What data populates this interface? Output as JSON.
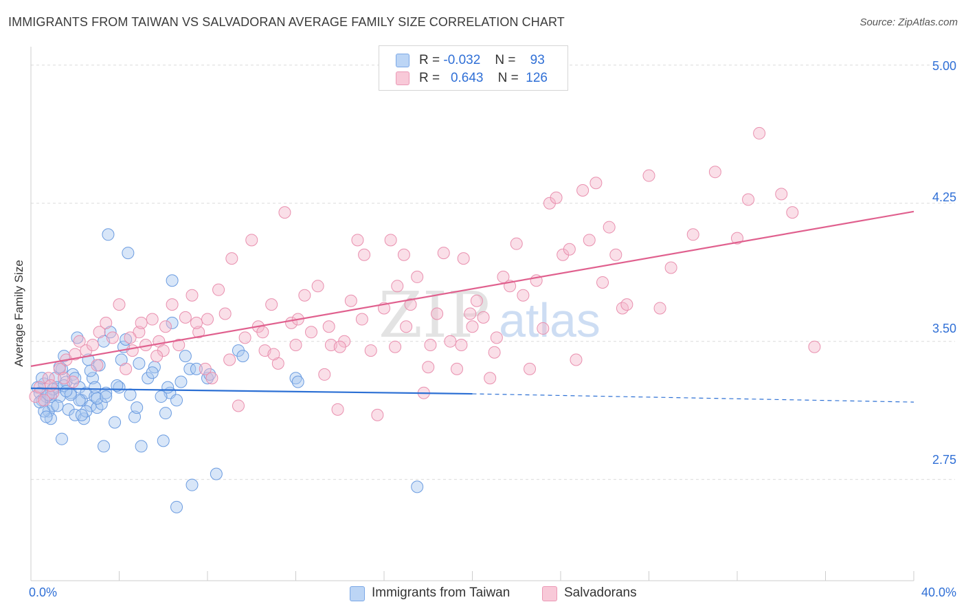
{
  "title": "IMMIGRANTS FROM TAIWAN VS SALVADORAN AVERAGE FAMILY SIZE CORRELATION CHART",
  "source": "Source: ZipAtlas.com",
  "watermark": {
    "zip": "ZIP",
    "atlas": "atlas"
  },
  "colors": {
    "blue": "#2f6fd6",
    "blue_fill": "#a8c8f0",
    "pink": "#e0608e",
    "pink_fill": "#f5b8cc",
    "axis_text": "#2f6fd6"
  },
  "legend": {
    "rows": [
      {
        "r_label": "R =",
        "r_value": "-0.032",
        "n_label": "N =",
        "n_value": "93"
      },
      {
        "r_label": "R =",
        "r_value": "0.643",
        "n_label": "N =",
        "n_value": "126"
      }
    ]
  },
  "bottom_legend": [
    {
      "label": "Immigrants from Taiwan"
    },
    {
      "label": "Salvadorans"
    }
  ],
  "chart_data": {
    "type": "scatter",
    "title": "IMMIGRANTS FROM TAIWAN VS SALVADORAN AVERAGE FAMILY SIZE CORRELATION CHART",
    "xlabel": "",
    "ylabel": "Average Family Size",
    "xlim": [
      0,
      40
    ],
    "ylim": [
      2.2,
      5.1
    ],
    "x_tick_labels": [
      "0.0%",
      "40.0%"
    ],
    "y_ticks": [
      2.75,
      3.5,
      4.25,
      5.0
    ],
    "y_tick_labels": [
      "2.75",
      "3.50",
      "4.25",
      "5.00"
    ],
    "grid": "horizontal dashed",
    "series": [
      {
        "name": "Immigrants from Taiwan",
        "color": "#2f6fd6",
        "trend": {
          "x": [
            0,
            20
          ],
          "y": [
            3.245,
            3.215
          ],
          "dashed_to": [
            40,
            3.17
          ]
        },
        "points": [
          [
            0.3,
            3.25
          ],
          [
            0.4,
            3.22
          ],
          [
            0.5,
            3.18
          ],
          [
            0.6,
            3.27
          ],
          [
            0.7,
            3.2
          ],
          [
            0.8,
            3.12
          ],
          [
            0.9,
            3.08
          ],
          [
            1.0,
            3.15
          ],
          [
            1.1,
            3.3
          ],
          [
            1.2,
            3.25
          ],
          [
            1.3,
            3.2
          ],
          [
            1.4,
            3.35
          ],
          [
            1.5,
            3.42
          ],
          [
            1.6,
            3.28
          ],
          [
            1.7,
            3.13
          ],
          [
            1.8,
            3.22
          ],
          [
            1.9,
            3.32
          ],
          [
            2.0,
            3.1
          ],
          [
            2.1,
            3.52
          ],
          [
            2.2,
            3.25
          ],
          [
            2.3,
            3.18
          ],
          [
            2.4,
            3.08
          ],
          [
            2.5,
            3.22
          ],
          [
            2.6,
            3.4
          ],
          [
            2.7,
            3.15
          ],
          [
            2.8,
            3.3
          ],
          [
            2.9,
            3.2
          ],
          [
            3.0,
            3.14
          ],
          [
            3.1,
            3.37
          ],
          [
            3.2,
            3.16
          ],
          [
            3.3,
            3.5
          ],
          [
            3.4,
            3.22
          ],
          [
            3.6,
            3.55
          ],
          [
            3.8,
            3.06
          ],
          [
            4.0,
            3.25
          ],
          [
            4.2,
            3.47
          ],
          [
            4.3,
            3.51
          ],
          [
            4.5,
            3.21
          ],
          [
            4.7,
            3.09
          ],
          [
            4.9,
            3.38
          ],
          [
            5.0,
            2.93
          ],
          [
            5.3,
            3.3
          ],
          [
            5.6,
            3.36
          ],
          [
            6.0,
            2.96
          ],
          [
            6.1,
            3.11
          ],
          [
            6.3,
            3.22
          ],
          [
            6.4,
            3.6
          ],
          [
            6.6,
            3.18
          ],
          [
            7.0,
            3.42
          ],
          [
            7.2,
            3.35
          ],
          [
            7.3,
            2.72
          ],
          [
            8.0,
            3.3
          ],
          [
            8.4,
            2.78
          ],
          [
            9.4,
            3.45
          ],
          [
            9.6,
            3.42
          ],
          [
            12.0,
            3.3
          ],
          [
            3.5,
            4.08
          ],
          [
            4.4,
            3.98
          ],
          [
            6.4,
            3.83
          ],
          [
            6.6,
            2.6
          ],
          [
            17.5,
            2.71
          ],
          [
            3.3,
            2.93
          ],
          [
            1.4,
            2.97
          ],
          [
            0.6,
            3.12
          ],
          [
            0.9,
            3.2
          ],
          [
            1.2,
            3.15
          ],
          [
            2.0,
            3.3
          ],
          [
            2.5,
            3.12
          ],
          [
            3.0,
            3.19
          ],
          [
            0.7,
            3.09
          ],
          [
            1.5,
            3.26
          ],
          [
            2.2,
            3.18
          ],
          [
            7.5,
            3.35
          ],
          [
            6.8,
            3.28
          ],
          [
            5.5,
            3.33
          ],
          [
            3.9,
            3.26
          ],
          [
            2.7,
            3.34
          ],
          [
            1.8,
            3.21
          ],
          [
            0.5,
            3.3
          ],
          [
            1.0,
            3.24
          ],
          [
            8.1,
            3.32
          ],
          [
            12.1,
            3.28
          ],
          [
            4.8,
            3.14
          ],
          [
            3.4,
            3.2
          ],
          [
            2.3,
            3.1
          ],
          [
            1.3,
            3.36
          ],
          [
            0.4,
            3.17
          ],
          [
            2.9,
            3.25
          ],
          [
            1.6,
            3.23
          ],
          [
            5.9,
            3.2
          ],
          [
            4.1,
            3.4
          ],
          [
            6.2,
            3.25
          ],
          [
            0.8,
            3.21
          ]
        ]
      },
      {
        "name": "Salvadorans",
        "color": "#e0608e",
        "trend": {
          "x": [
            0,
            40
          ],
          "y": [
            3.365,
            4.205
          ]
        },
        "points": [
          [
            0.2,
            3.2
          ],
          [
            0.4,
            3.25
          ],
          [
            0.6,
            3.18
          ],
          [
            0.8,
            3.3
          ],
          [
            1.0,
            3.22
          ],
          [
            1.3,
            3.35
          ],
          [
            1.6,
            3.4
          ],
          [
            1.9,
            3.28
          ],
          [
            2.2,
            3.5
          ],
          [
            2.5,
            3.45
          ],
          [
            2.8,
            3.48
          ],
          [
            3.1,
            3.55
          ],
          [
            3.4,
            3.6
          ],
          [
            3.7,
            3.52
          ],
          [
            4.0,
            3.7
          ],
          [
            4.3,
            3.35
          ],
          [
            4.6,
            3.45
          ],
          [
            4.9,
            3.55
          ],
          [
            5.2,
            3.48
          ],
          [
            5.5,
            3.62
          ],
          [
            5.8,
            3.5
          ],
          [
            6.1,
            3.58
          ],
          [
            6.4,
            3.7
          ],
          [
            6.7,
            3.48
          ],
          [
            7.0,
            3.63
          ],
          [
            7.3,
            3.75
          ],
          [
            7.6,
            3.55
          ],
          [
            7.9,
            3.35
          ],
          [
            8.2,
            3.3
          ],
          [
            8.5,
            3.78
          ],
          [
            8.8,
            3.65
          ],
          [
            9.1,
            3.95
          ],
          [
            9.4,
            3.15
          ],
          [
            9.7,
            3.52
          ],
          [
            10.0,
            4.05
          ],
          [
            10.3,
            3.58
          ],
          [
            10.6,
            3.45
          ],
          [
            10.9,
            3.7
          ],
          [
            11.2,
            3.38
          ],
          [
            11.5,
            4.2
          ],
          [
            11.8,
            3.6
          ],
          [
            12.1,
            3.62
          ],
          [
            12.4,
            3.75
          ],
          [
            12.7,
            3.55
          ],
          [
            13.0,
            3.8
          ],
          [
            13.3,
            3.32
          ],
          [
            13.6,
            3.48
          ],
          [
            13.9,
            3.13
          ],
          [
            14.2,
            3.5
          ],
          [
            14.5,
            3.72
          ],
          [
            14.8,
            4.05
          ],
          [
            15.1,
            3.97
          ],
          [
            15.4,
            3.45
          ],
          [
            15.7,
            3.1
          ],
          [
            16.0,
            3.68
          ],
          [
            16.3,
            4.05
          ],
          [
            16.6,
            3.8
          ],
          [
            16.9,
            3.97
          ],
          [
            17.2,
            3.7
          ],
          [
            17.5,
            3.85
          ],
          [
            17.8,
            3.22
          ],
          [
            18.1,
            3.48
          ],
          [
            18.4,
            3.65
          ],
          [
            18.7,
            3.98
          ],
          [
            19.0,
            3.5
          ],
          [
            19.3,
            3.35
          ],
          [
            19.6,
            3.95
          ],
          [
            19.9,
            3.65
          ],
          [
            20.2,
            3.72
          ],
          [
            20.5,
            3.63
          ],
          [
            20.8,
            3.3
          ],
          [
            21.1,
            3.52
          ],
          [
            21.4,
            3.85
          ],
          [
            21.7,
            3.8
          ],
          [
            22.0,
            4.03
          ],
          [
            22.3,
            3.75
          ],
          [
            22.6,
            3.35
          ],
          [
            22.9,
            3.83
          ],
          [
            23.2,
            3.57
          ],
          [
            23.5,
            4.25
          ],
          [
            23.8,
            4.28
          ],
          [
            24.1,
            3.97
          ],
          [
            24.4,
            4.0
          ],
          [
            24.7,
            3.4
          ],
          [
            25.0,
            4.32
          ],
          [
            25.3,
            4.05
          ],
          [
            25.6,
            4.36
          ],
          [
            25.9,
            3.82
          ],
          [
            26.2,
            4.12
          ],
          [
            26.5,
            3.97
          ],
          [
            26.8,
            3.68
          ],
          [
            27.0,
            3.7
          ],
          [
            28.0,
            4.4
          ],
          [
            28.5,
            3.68
          ],
          [
            29.0,
            3.9
          ],
          [
            30.0,
            4.08
          ],
          [
            31.0,
            4.42
          ],
          [
            32.0,
            4.06
          ],
          [
            32.5,
            4.27
          ],
          [
            33.0,
            4.63
          ],
          [
            34.0,
            4.3
          ],
          [
            34.5,
            4.2
          ],
          [
            35.5,
            3.47
          ],
          [
            5.0,
            3.6
          ],
          [
            6.0,
            3.45
          ],
          [
            7.5,
            3.6
          ],
          [
            9.0,
            3.4
          ],
          [
            10.5,
            3.55
          ],
          [
            12.0,
            3.48
          ],
          [
            13.5,
            3.58
          ],
          [
            15.0,
            3.62
          ],
          [
            16.5,
            3.47
          ],
          [
            18.0,
            3.36
          ],
          [
            19.5,
            3.48
          ],
          [
            21.0,
            3.44
          ],
          [
            2.0,
            3.43
          ],
          [
            3.0,
            3.37
          ],
          [
            1.5,
            3.3
          ],
          [
            0.9,
            3.26
          ],
          [
            4.5,
            3.52
          ],
          [
            5.7,
            3.42
          ],
          [
            8.0,
            3.62
          ],
          [
            11.0,
            3.43
          ],
          [
            14.0,
            3.47
          ],
          [
            17.0,
            3.58
          ],
          [
            20.0,
            3.58
          ]
        ]
      }
    ]
  }
}
